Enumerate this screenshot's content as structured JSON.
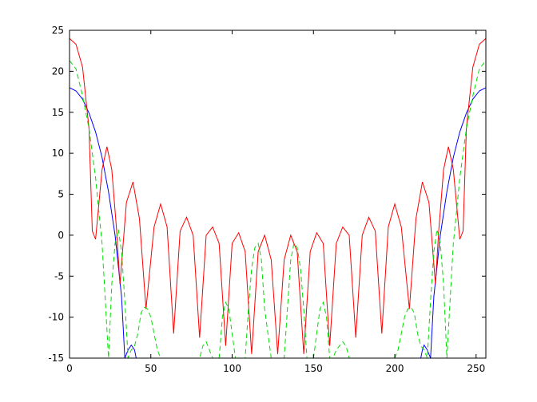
{
  "chart_data": {
    "type": "line",
    "title": "",
    "xlabel": "",
    "ylabel": "",
    "xlim": [
      0,
      256
    ],
    "ylim": [
      -15,
      25
    ],
    "grid": false,
    "x_ticks": [
      "0",
      "50",
      "100",
      "150",
      "200",
      "250"
    ],
    "y_ticks": [
      "-15",
      "-10",
      "-5",
      "0",
      "5",
      "10",
      "15",
      "20",
      "25"
    ],
    "x_tick_values": [
      0,
      50,
      100,
      150,
      200,
      250
    ],
    "y_tick_values": [
      -15,
      -10,
      -5,
      0,
      5,
      10,
      15,
      20,
      25
    ],
    "series": [
      {
        "color": "#0000ff",
        "style": "solid",
        "x": [
          0,
          4,
          8,
          12,
          16,
          20,
          24,
          28,
          32,
          34,
          36,
          38,
          40,
          41,
          216,
          217,
          218,
          220,
          222,
          224,
          228,
          232,
          236,
          240,
          244,
          248,
          252,
          256
        ],
        "y": [
          18,
          17.6,
          16.6,
          14.9,
          12.6,
          9.5,
          5.3,
          0,
          -7.5,
          -15,
          -14,
          -13.4,
          -14,
          -15,
          -15,
          -14,
          -13.4,
          -14,
          -15,
          -7.5,
          0,
          5.3,
          9.5,
          12.6,
          14.9,
          16.6,
          17.6,
          18
        ]
      },
      {
        "color": "#ff0000",
        "style": "solid",
        "x": [
          0,
          4,
          8,
          12,
          14,
          16,
          20,
          23,
          26,
          29,
          31,
          35,
          39,
          43,
          47,
          52,
          56,
          60,
          64,
          68,
          72,
          76,
          80,
          84,
          88,
          92,
          96,
          100,
          104,
          108,
          112,
          116,
          120,
          124,
          128,
          132,
          136,
          140,
          144,
          148,
          152,
          156,
          160,
          164,
          168,
          172,
          176,
          180,
          184,
          188,
          192,
          196,
          200,
          204,
          209,
          213,
          217,
          221,
          225,
          227,
          230,
          233,
          236,
          240,
          242,
          244,
          248,
          252,
          256
        ],
        "y": [
          24,
          23.3,
          20.5,
          13,
          0.5,
          -0.5,
          8,
          10.8,
          8,
          0.5,
          -6,
          4,
          6.5,
          2,
          -9,
          1,
          3.8,
          1,
          -12,
          0.5,
          2.2,
          0,
          -12.5,
          0,
          1,
          -1,
          -13.5,
          -1,
          0.3,
          -2,
          -14.5,
          -2,
          0,
          -3,
          -14.5,
          -3,
          0,
          -2,
          -14.5,
          -2,
          0.3,
          -1,
          -13.5,
          -1,
          1,
          0,
          -12.5,
          0,
          2.2,
          0.5,
          -12,
          1,
          3.8,
          1,
          -9,
          2,
          6.5,
          4,
          -6,
          0.5,
          8,
          10.8,
          8,
          -0.5,
          0.5,
          13,
          20.5,
          23.3,
          24
        ]
      },
      {
        "color": "#00dd00",
        "style": "dashed",
        "x": [
          0,
          4,
          8,
          12,
          16,
          18,
          20,
          22,
          24,
          26,
          28,
          30,
          32,
          34,
          36,
          38,
          40,
          42,
          44,
          46,
          48,
          50,
          52,
          54,
          56,
          80,
          82,
          84,
          86,
          88,
          92,
          94,
          96,
          98,
          100,
          102,
          104,
          108,
          110,
          112,
          114,
          116,
          118,
          120,
          124,
          126,
          128,
          130,
          132,
          134,
          136,
          138,
          140,
          142,
          144,
          146,
          148,
          150,
          152,
          154,
          156,
          158,
          160,
          162,
          164,
          168,
          170,
          172,
          174,
          176,
          200,
          202,
          204,
          206,
          208,
          210,
          212,
          214,
          216,
          218,
          220,
          222,
          224,
          226,
          228,
          230,
          232,
          234,
          236,
          238,
          240,
          244,
          248,
          252,
          256
        ],
        "y": [
          21.3,
          20.3,
          17,
          13,
          7,
          3,
          -1,
          -8,
          -15,
          -6,
          -1,
          0.7,
          -2,
          -8,
          -15,
          -14,
          -13.5,
          -12,
          -9.5,
          -8.8,
          -9,
          -10,
          -12,
          -14,
          -15,
          -15,
          -13.5,
          -13,
          -14,
          -15,
          -15,
          -10,
          -8.2,
          -9,
          -12,
          -15,
          -15,
          -15,
          -9,
          -4,
          -1.5,
          -1,
          -3,
          -9,
          -15,
          -15,
          -15,
          -15,
          -15,
          -9,
          -3,
          -1,
          -1.5,
          -4,
          -9,
          -15,
          -15,
          -15,
          -12,
          -9,
          -8.2,
          -10,
          -15,
          -15,
          -14,
          -13,
          -13.5,
          -15,
          -15,
          -15,
          -15,
          -14,
          -12,
          -10,
          -9,
          -8.8,
          -9.5,
          -12,
          -13.5,
          -14,
          -15,
          -8,
          -2,
          0.7,
          -1,
          -6,
          -15,
          -8,
          -1,
          3,
          7,
          13,
          17,
          20.3,
          21.3
        ]
      }
    ]
  }
}
